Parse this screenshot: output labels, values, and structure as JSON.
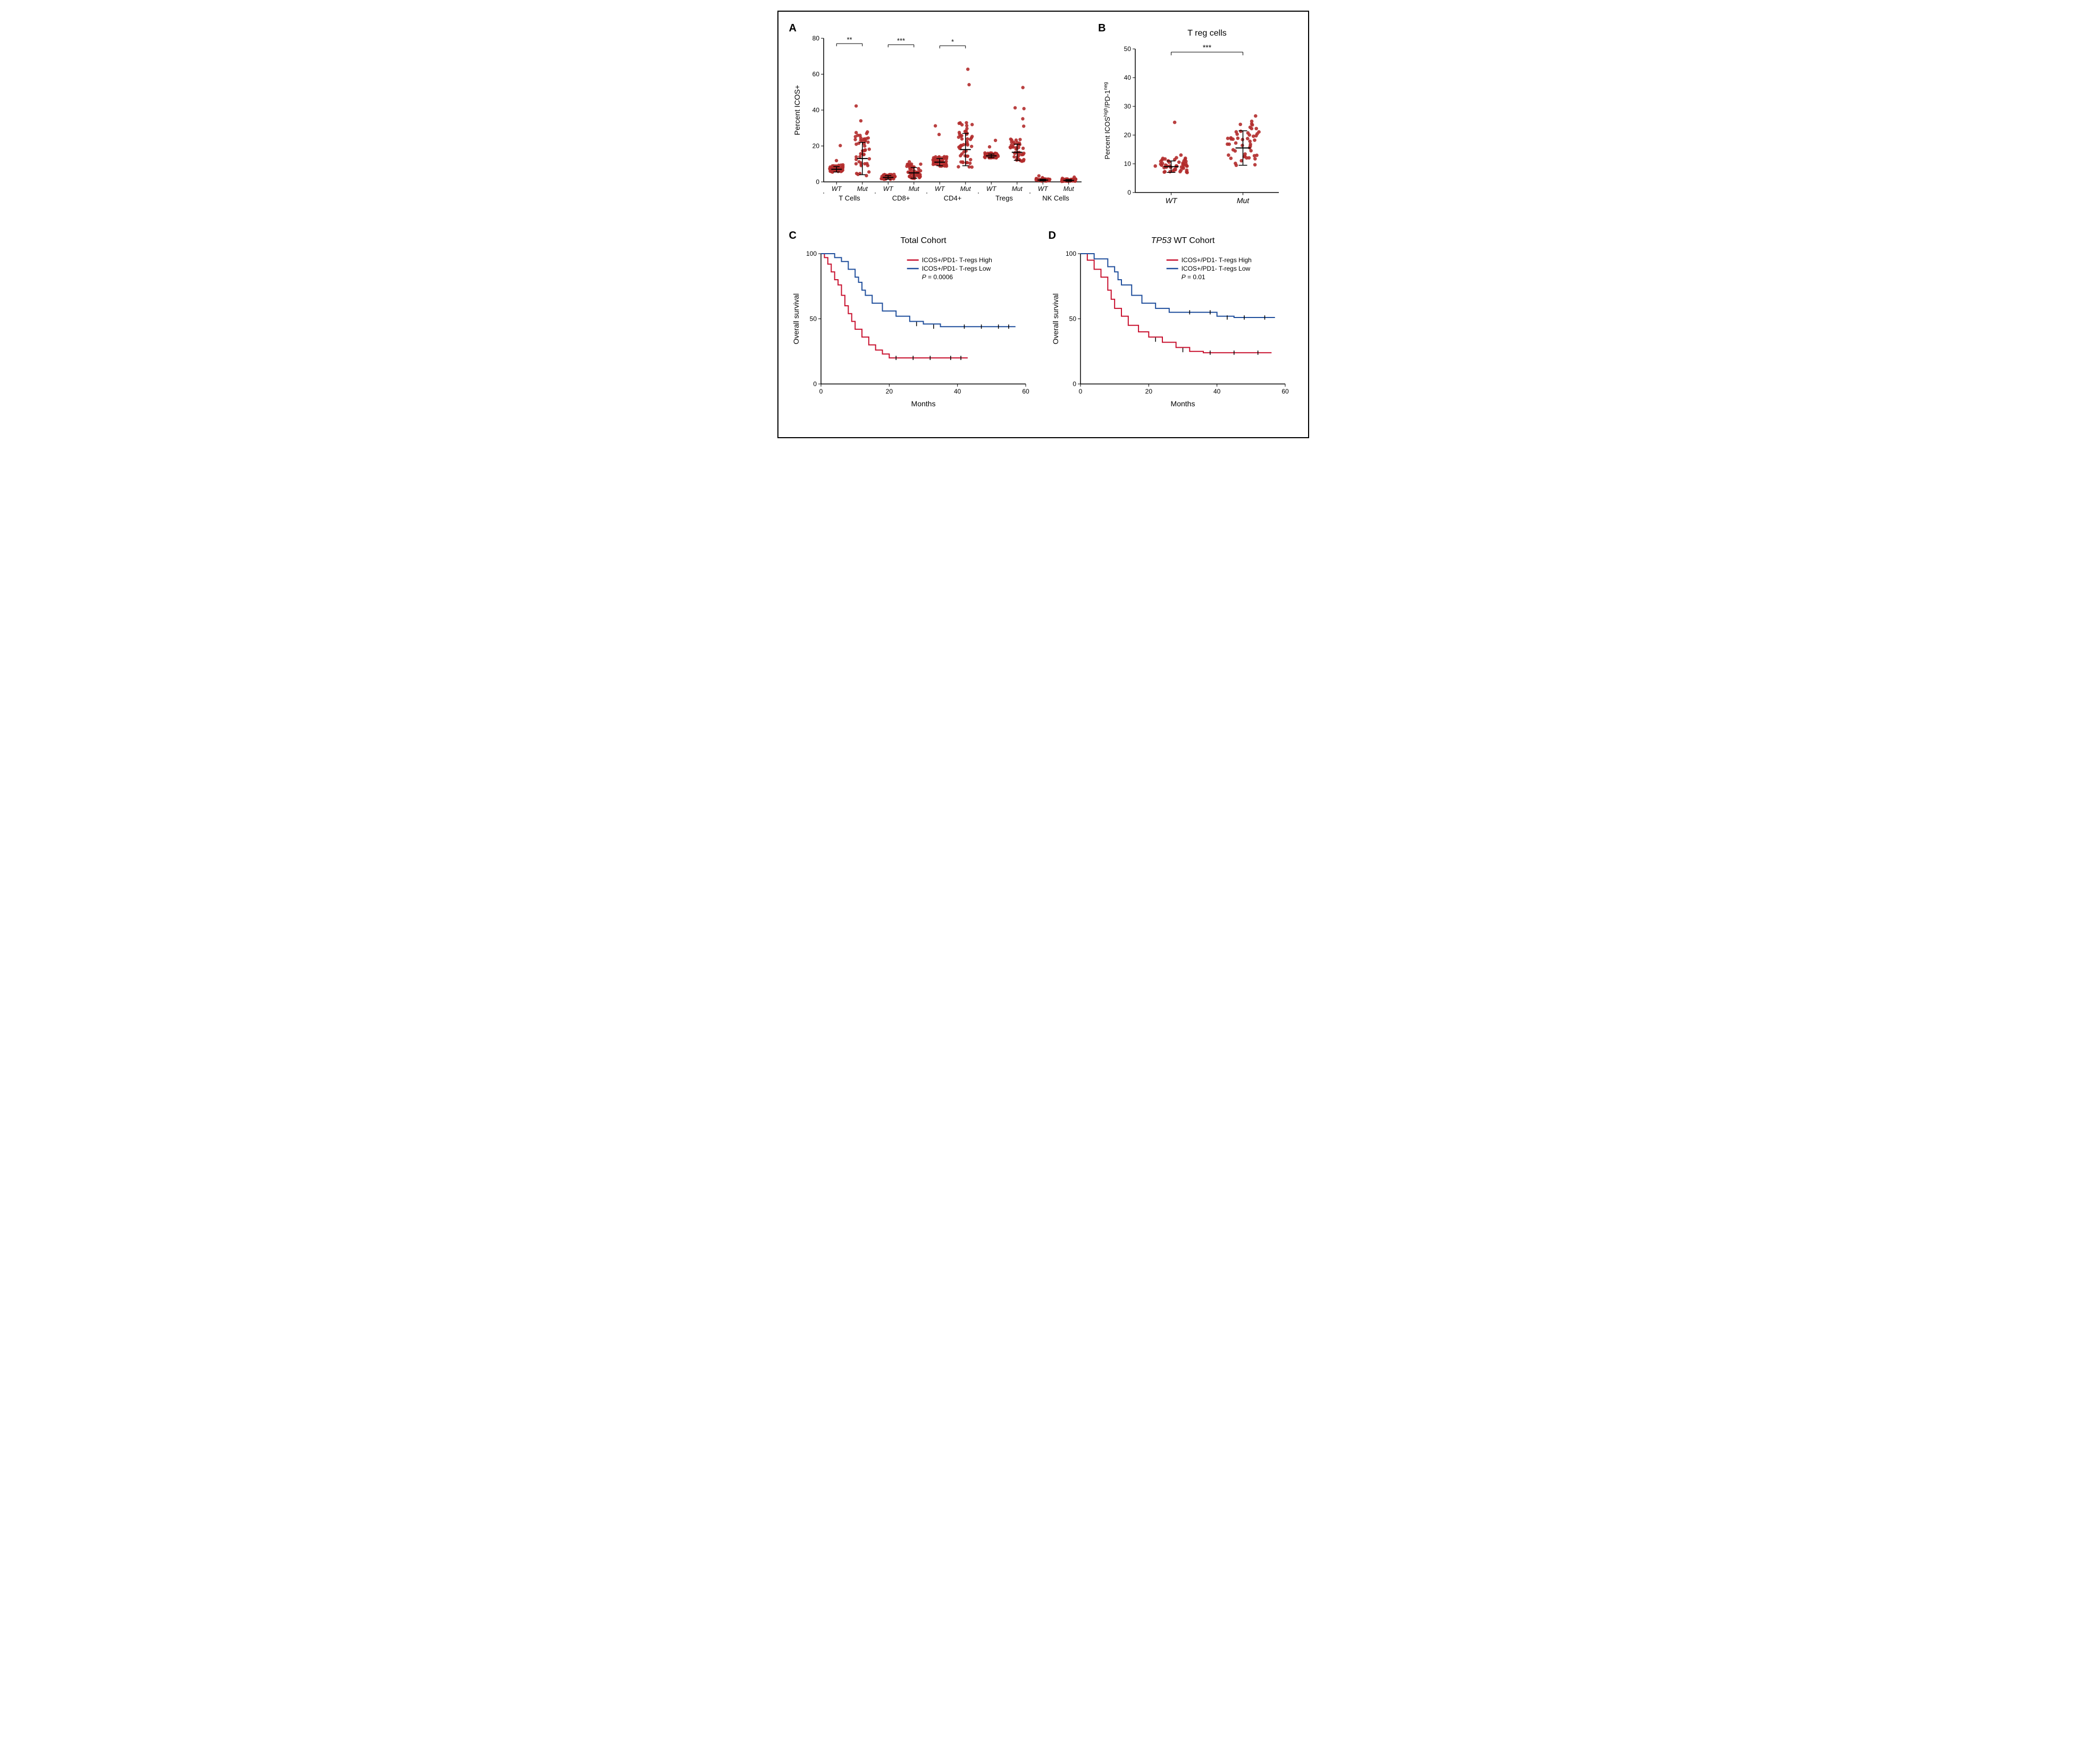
{
  "figure": {
    "border_color": "#000000",
    "background_color": "#ffffff",
    "panel_label_fontsize": 20,
    "axis_fontsize": 14,
    "tick_fontsize": 12,
    "point_color": "#b22c2c",
    "error_bar_color": "#000000",
    "panels": {
      "A": {
        "label": "A",
        "type": "scatter-jitter",
        "ylabel": "Percent ICOS+",
        "ylim": [
          0,
          80
        ],
        "ytick_step": 20,
        "groups": [
          {
            "group": "T Cells",
            "sub": "WT",
            "mean": 7,
            "ci": 3,
            "sig": null
          },
          {
            "group": "T Cells",
            "sub": "Mut",
            "mean": 13,
            "ci": 18,
            "sig": "**"
          },
          {
            "group": "CD8+",
            "sub": "WT",
            "mean": 2.5,
            "ci": 2,
            "sig": null
          },
          {
            "group": "CD8+",
            "sub": "Mut",
            "mean": 5,
            "ci": 6,
            "sig": "***"
          },
          {
            "group": "CD4+",
            "sub": "WT",
            "mean": 11,
            "ci": 4,
            "sig": null
          },
          {
            "group": "CD4+",
            "sub": "Mut",
            "mean": 18,
            "ci": 18,
            "sig": "*"
          },
          {
            "group": "Tregs",
            "sub": "WT",
            "mean": 14.5,
            "ci": 2,
            "sig": null
          },
          {
            "group": "Tregs",
            "sub": "Mut",
            "mean": 16.5,
            "ci": 9,
            "sig": null
          },
          {
            "group": "NK Cells",
            "sub": "WT",
            "mean": 1,
            "ci": 1,
            "sig": null
          },
          {
            "group": "NK Cells",
            "sub": "Mut",
            "mean": 0.8,
            "ci": 1,
            "sig": null
          }
        ],
        "group_labels": [
          "T Cells",
          "CD8+",
          "CD4+",
          "Tregs",
          "NK Cells"
        ],
        "sub_labels": [
          "WT",
          "Mut"
        ],
        "sub_style": "italic"
      },
      "B": {
        "label": "B",
        "type": "scatter-jitter",
        "title": "T reg cells",
        "title_fontsize": 16,
        "ylabel_html": "Percent ICOS<tspan baseline-shift=\"super\" font-size=\"9\">high</tspan>/PD-1<tspan baseline-shift=\"super\" font-size=\"9\">neg</tspan>",
        "ylabel_plain": "Percent ICOShigh/PD-1neg",
        "ylim": [
          0,
          50
        ],
        "ytick_step": 10,
        "groups": [
          {
            "sub": "WT",
            "mean": 9,
            "ci": 4
          },
          {
            "sub": "Mut",
            "mean": 15.5,
            "ci": 12
          }
        ],
        "sig": "***",
        "sub_labels": [
          "WT",
          "Mut"
        ],
        "sub_style": "italic"
      },
      "C": {
        "label": "C",
        "type": "kaplan-meier",
        "title": "Total Cohort",
        "title_fontsize": 16,
        "ylabel": "Overall survival",
        "xlabel": "Months",
        "ylim": [
          0,
          100
        ],
        "ytick_step": 50,
        "xlim": [
          0,
          60
        ],
        "xtick_step": 20,
        "legend": [
          {
            "label": "ICOS+/PD1- T-regs High",
            "color": "#c8102e"
          },
          {
            "label": "ICOS+/PD1- T-regs Low",
            "color": "#1f4e9c"
          }
        ],
        "p_value": "P = 0.0006",
        "p_style": "italic-P",
        "curves": {
          "high": {
            "color": "#c8102e",
            "points": [
              [
                0,
                100
              ],
              [
                1,
                97
              ],
              [
                2,
                92
              ],
              [
                3,
                86
              ],
              [
                4,
                80
              ],
              [
                5,
                76
              ],
              [
                6,
                68
              ],
              [
                7,
                60
              ],
              [
                8,
                54
              ],
              [
                9,
                48
              ],
              [
                10,
                42
              ],
              [
                12,
                36
              ],
              [
                14,
                30
              ],
              [
                16,
                26
              ],
              [
                18,
                23
              ],
              [
                20,
                20
              ],
              [
                25,
                20
              ],
              [
                30,
                20
              ],
              [
                35,
                20
              ],
              [
                40,
                20
              ],
              [
                43,
                20
              ]
            ],
            "censors": [
              [
                22,
                20
              ],
              [
                27,
                20
              ],
              [
                32,
                20
              ],
              [
                38,
                20
              ],
              [
                41,
                20
              ]
            ]
          },
          "low": {
            "color": "#1f4e9c",
            "points": [
              [
                0,
                100
              ],
              [
                4,
                97
              ],
              [
                6,
                94
              ],
              [
                8,
                88
              ],
              [
                10,
                82
              ],
              [
                11,
                78
              ],
              [
                12,
                72
              ],
              [
                13,
                68
              ],
              [
                15,
                62
              ],
              [
                18,
                56
              ],
              [
                22,
                52
              ],
              [
                26,
                48
              ],
              [
                30,
                46
              ],
              [
                35,
                44
              ],
              [
                40,
                44
              ],
              [
                45,
                44
              ],
              [
                50,
                44
              ],
              [
                55,
                44
              ],
              [
                57,
                44
              ]
            ],
            "censors": [
              [
                28,
                46
              ],
              [
                33,
                44
              ],
              [
                42,
                44
              ],
              [
                47,
                44
              ],
              [
                52,
                44
              ],
              [
                55,
                44
              ]
            ]
          }
        }
      },
      "D": {
        "label": "D",
        "type": "kaplan-meier",
        "title_html": "<tspan font-style=\"italic\">TP53</tspan> WT Cohort",
        "title_plain": "TP53 WT Cohort",
        "title_fontsize": 16,
        "ylabel": "Overall survival",
        "xlabel": "Months",
        "ylim": [
          0,
          100
        ],
        "ytick_step": 50,
        "xlim": [
          0,
          60
        ],
        "xtick_step": 20,
        "legend": [
          {
            "label": "ICOS+/PD1- T-regs High",
            "color": "#c8102e"
          },
          {
            "label": "ICOS+/PD1- T-regs Low",
            "color": "#1f4e9c"
          }
        ],
        "p_value": "P = 0.01",
        "p_style": "italic-P",
        "curves": {
          "high": {
            "color": "#c8102e",
            "points": [
              [
                0,
                100
              ],
              [
                2,
                95
              ],
              [
                4,
                88
              ],
              [
                6,
                82
              ],
              [
                8,
                72
              ],
              [
                9,
                65
              ],
              [
                10,
                58
              ],
              [
                12,
                52
              ],
              [
                14,
                45
              ],
              [
                17,
                40
              ],
              [
                20,
                36
              ],
              [
                24,
                32
              ],
              [
                28,
                28
              ],
              [
                32,
                25
              ],
              [
                36,
                24
              ],
              [
                40,
                24
              ],
              [
                44,
                24
              ],
              [
                50,
                24
              ],
              [
                56,
                24
              ]
            ],
            "censors": [
              [
                22,
                34
              ],
              [
                30,
                26
              ],
              [
                38,
                24
              ],
              [
                45,
                24
              ],
              [
                52,
                24
              ]
            ]
          },
          "low": {
            "color": "#1f4e9c",
            "points": [
              [
                0,
                100
              ],
              [
                4,
                96
              ],
              [
                8,
                90
              ],
              [
                10,
                86
              ],
              [
                11,
                80
              ],
              [
                12,
                76
              ],
              [
                15,
                68
              ],
              [
                18,
                62
              ],
              [
                22,
                58
              ],
              [
                26,
                55
              ],
              [
                30,
                55
              ],
              [
                35,
                55
              ],
              [
                40,
                52
              ],
              [
                45,
                51
              ],
              [
                50,
                51
              ],
              [
                55,
                51
              ],
              [
                57,
                51
              ]
            ],
            "censors": [
              [
                32,
                55
              ],
              [
                38,
                55
              ],
              [
                43,
                51
              ],
              [
                48,
                51
              ],
              [
                54,
                51
              ]
            ]
          }
        }
      }
    }
  }
}
